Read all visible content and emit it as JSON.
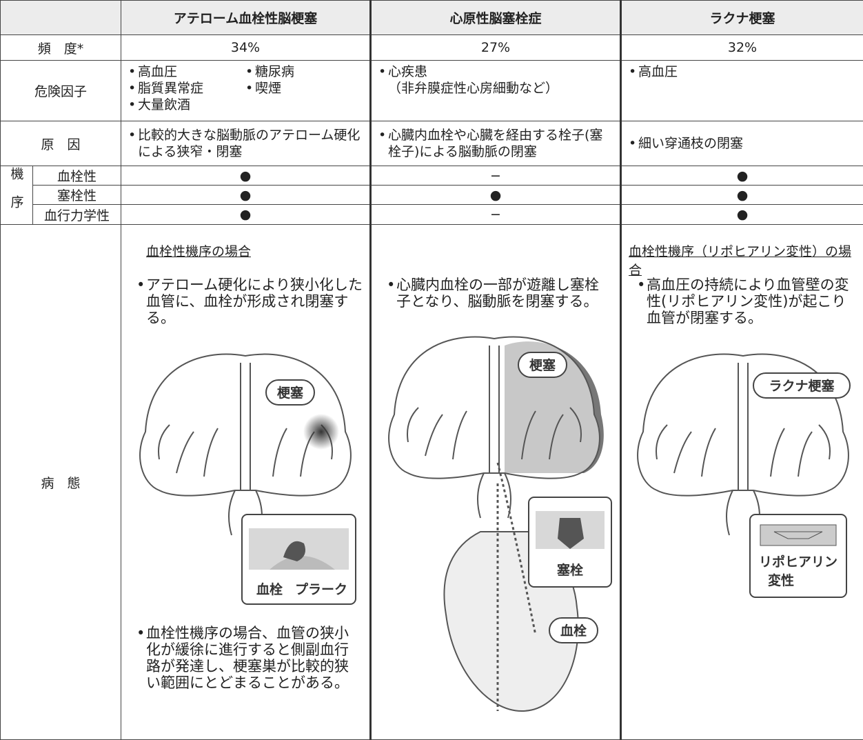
{
  "table": {
    "header": {
      "columns": [
        "アテローム血栓性脳梗塞",
        "心原性脳塞栓症",
        "ラクナ梗塞"
      ]
    },
    "frequency": {
      "label": "頻　度*",
      "values": [
        "34%",
        "27%",
        "32%"
      ]
    },
    "risk_factors": {
      "label": "危険因子",
      "cells": [
        [
          "高血圧",
          "糖尿病",
          "脂質異常症",
          "喫煙",
          "大量飲酒"
        ],
        [
          "心疾患",
          "（非弁膜症性心房細動など）"
        ],
        [
          "高血圧"
        ]
      ]
    },
    "cause": {
      "label": "原　因",
      "values": [
        "比較的大きな脳動脈のアテローム硬化による狭窄・閉塞",
        "心臓内血栓や心臓を経由する栓子(塞栓子)による脳動脈の閉塞",
        "細い穿通枝の閉塞"
      ]
    },
    "mechanism": {
      "label": "機序",
      "rows": [
        {
          "label": "血栓性",
          "values": [
            "●",
            "−",
            "●"
          ]
        },
        {
          "label": "塞栓性",
          "values": [
            "●",
            "●",
            "●"
          ]
        },
        {
          "label": "血行力学性",
          "values": [
            "●",
            "−",
            "●"
          ]
        }
      ]
    },
    "pathology": {
      "label": "病　態",
      "cells": [
        {
          "heading": "血栓性機序の場合",
          "text": "アテローム硬化により狭小化した血管に、血栓が形成され閉塞する。",
          "labels": [
            "梗塞",
            "血栓",
            "プラーク"
          ],
          "note": "血栓性機序の場合、血管の狭小化が緩徐に進行すると側副血行路が発達し、梗塞巣が比較的狭い範囲にとどまることがある。"
        },
        {
          "text": "心臓内血栓の一部が遊離し塞栓子となり、脳動脈を閉塞する。",
          "labels": [
            "梗塞",
            "塞栓",
            "血栓"
          ]
        },
        {
          "heading": "血栓性機序（リポヒアリン変性）の場合",
          "text": "高血圧の持続により血管壁の変性(リポヒアリン変性)が起こり血管が閉塞する。",
          "labels": [
            "ラクナ梗塞",
            "リポヒアリン",
            "変性"
          ]
        }
      ]
    }
  }
}
